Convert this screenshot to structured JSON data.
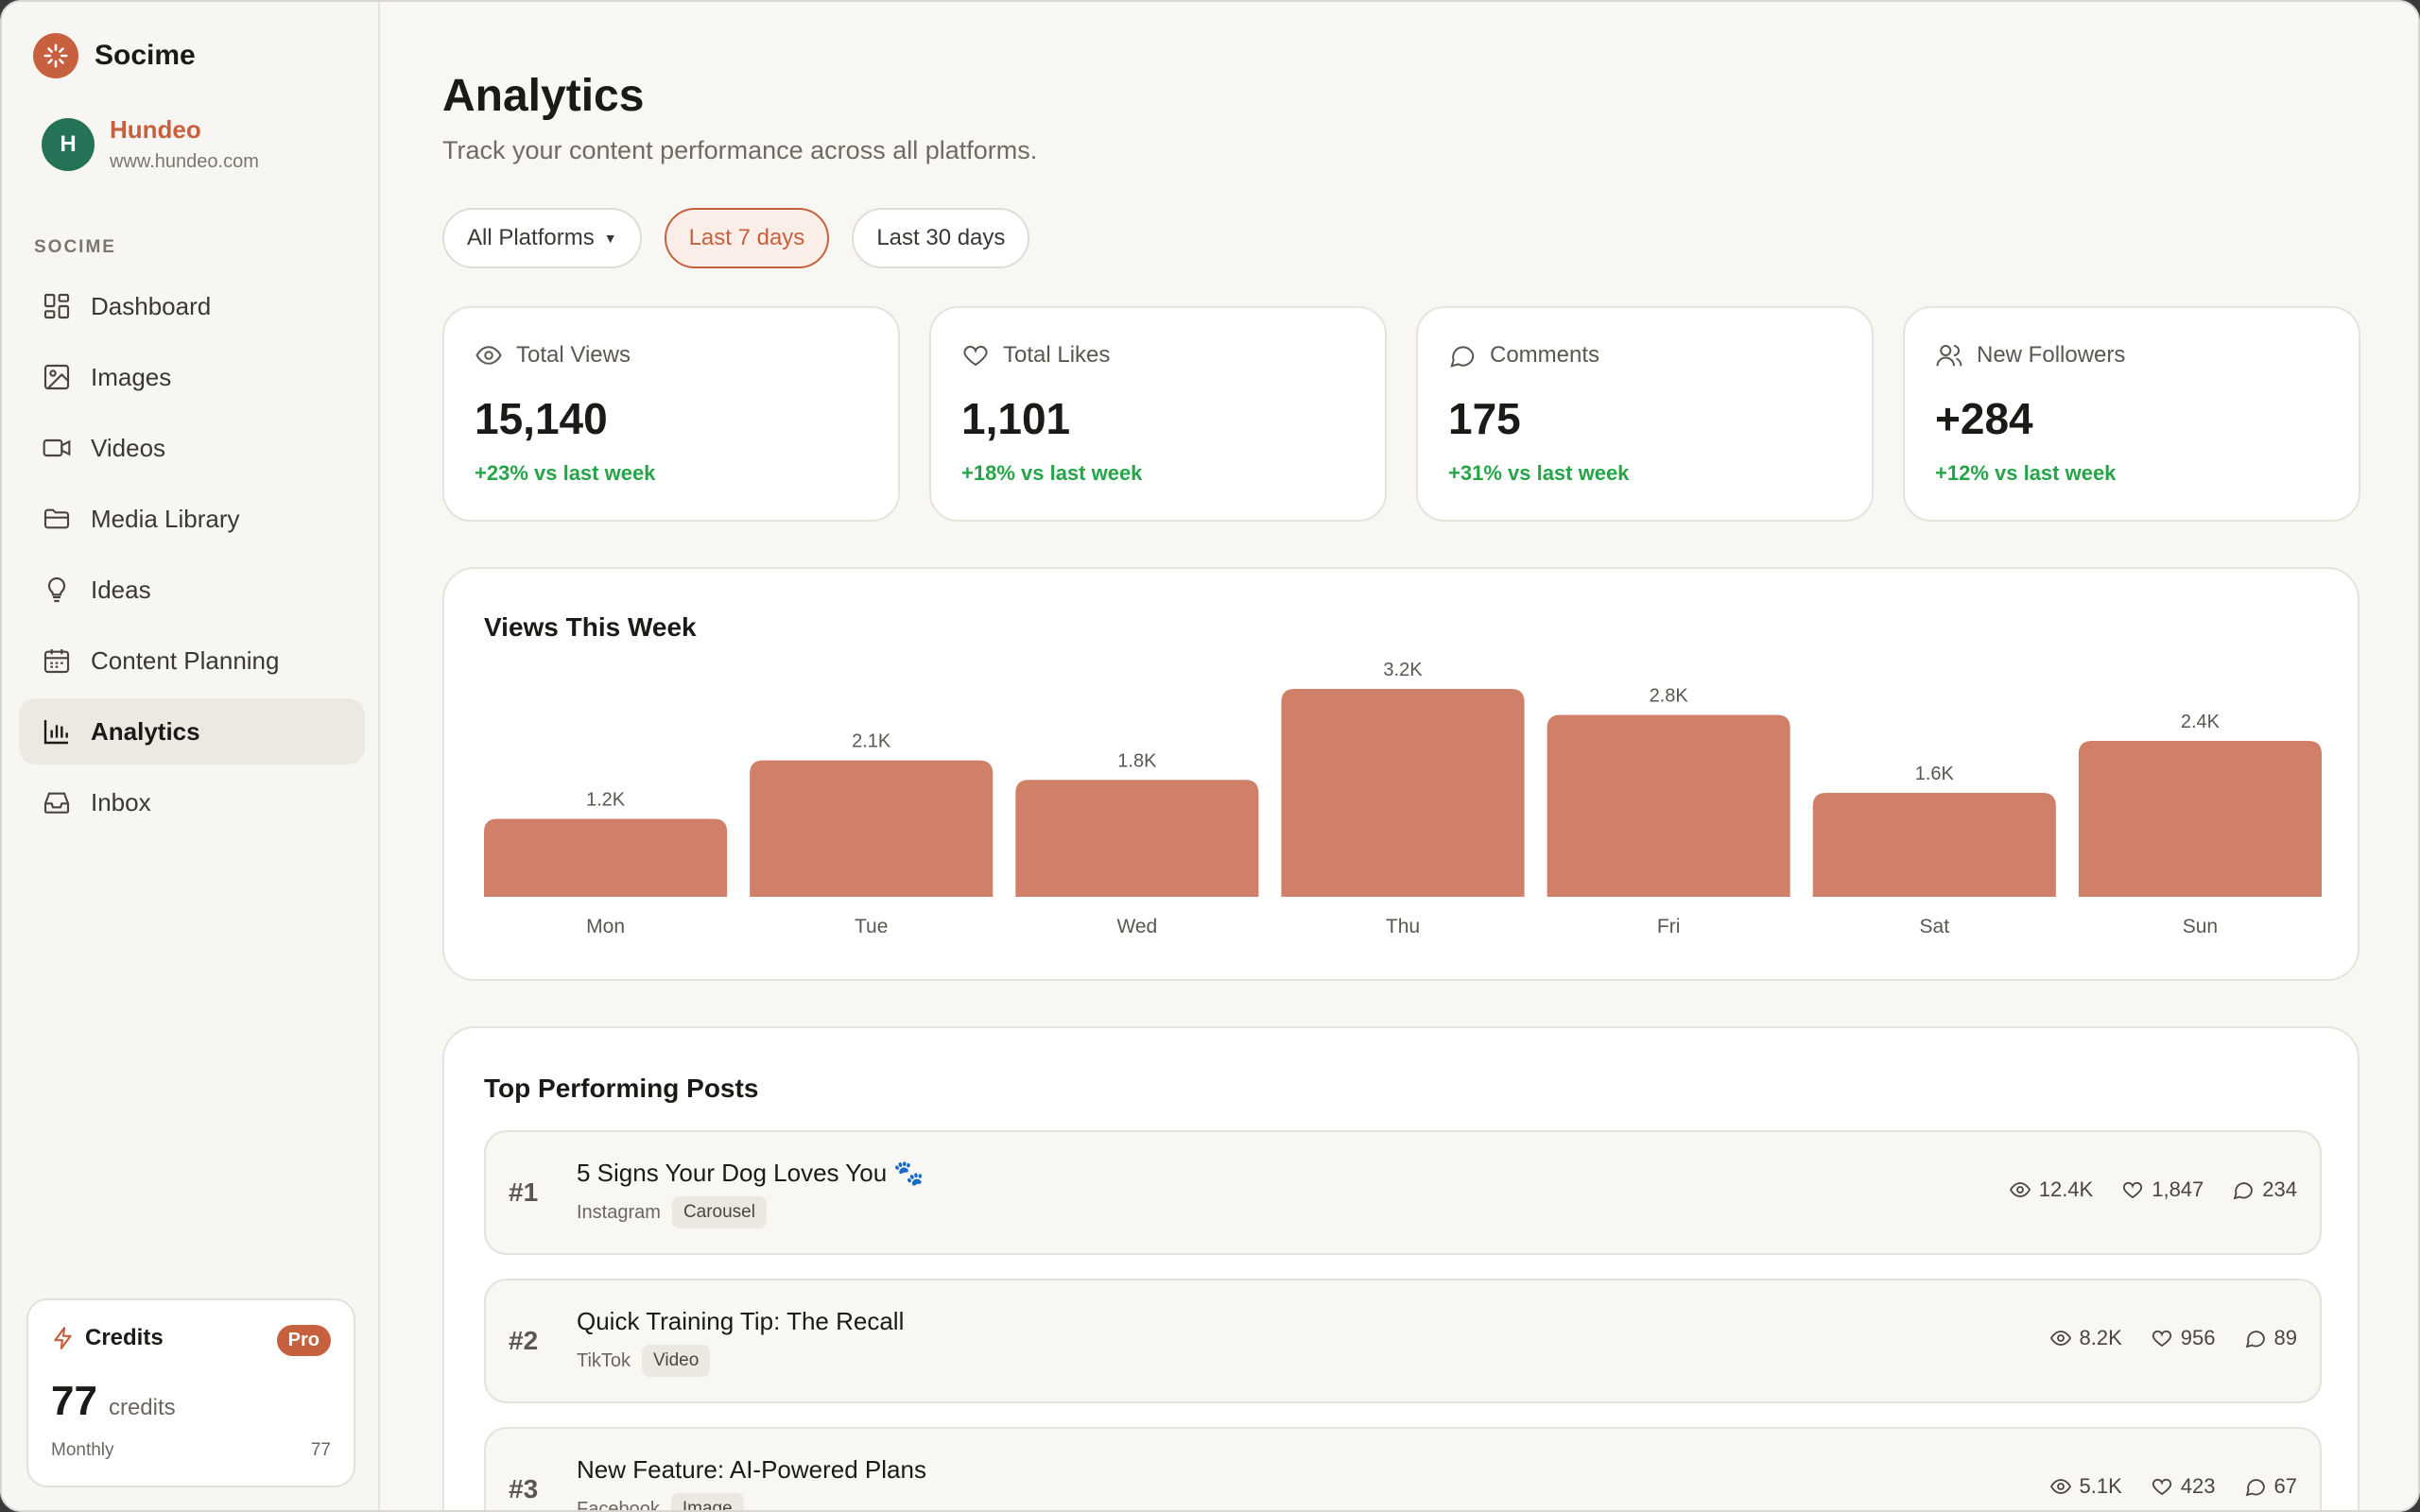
{
  "app": {
    "name": "Socime"
  },
  "workspace": {
    "initial": "H",
    "name": "Hundeo",
    "url": "www.hundeo.com"
  },
  "sidebar": {
    "section_label": "SOCIME",
    "items": [
      {
        "label": "Dashboard",
        "icon": "dashboard-icon"
      },
      {
        "label": "Images",
        "icon": "image-icon"
      },
      {
        "label": "Videos",
        "icon": "video-icon"
      },
      {
        "label": "Media Library",
        "icon": "folder-icon"
      },
      {
        "label": "Ideas",
        "icon": "lightbulb-icon"
      },
      {
        "label": "Content Planning",
        "icon": "calendar-icon"
      },
      {
        "label": "Analytics",
        "icon": "bar-chart-icon",
        "active": true
      },
      {
        "label": "Inbox",
        "icon": "inbox-icon"
      }
    ]
  },
  "credits": {
    "title": "Credits",
    "badge": "Pro",
    "amount": "77",
    "unit": "credits",
    "period_label": "Monthly",
    "period_value": "77"
  },
  "header": {
    "title": "Analytics",
    "subtitle": "Track your content performance across all platforms."
  },
  "filters": {
    "platform": "All Platforms",
    "range_7": "Last 7 days",
    "range_30": "Last 30 days",
    "selected": "Last 7 days"
  },
  "stats": [
    {
      "label": "Total Views",
      "value": "15,140",
      "delta": "+23% vs last week",
      "icon": "eye-icon"
    },
    {
      "label": "Total Likes",
      "value": "1,101",
      "delta": "+18% vs last week",
      "icon": "heart-icon"
    },
    {
      "label": "Comments",
      "value": "175",
      "delta": "+31% vs last week",
      "icon": "comment-icon"
    },
    {
      "label": "New Followers",
      "value": "+284",
      "delta": "+12% vs last week",
      "icon": "users-icon"
    }
  ],
  "chart_data": {
    "type": "bar",
    "title": "Views This Week",
    "categories": [
      "Mon",
      "Tue",
      "Wed",
      "Thu",
      "Fri",
      "Sat",
      "Sun"
    ],
    "values": [
      1200,
      2100,
      1800,
      3200,
      2800,
      1600,
      2400
    ],
    "value_labels": [
      "1.2K",
      "2.1K",
      "1.8K",
      "3.2K",
      "2.8K",
      "1.6K",
      "2.4K"
    ],
    "bar_color": "#d08068",
    "grid": false
  },
  "posts": {
    "title": "Top Performing Posts",
    "items": [
      {
        "rank": "#1",
        "title": "5 Signs Your Dog Loves You 🐾",
        "platform": "Instagram",
        "type": "Carousel",
        "views": "12.4K",
        "likes": "1,847",
        "comments": "234"
      },
      {
        "rank": "#2",
        "title": "Quick Training Tip: The Recall",
        "platform": "TikTok",
        "type": "Video",
        "views": "8.2K",
        "likes": "956",
        "comments": "89"
      },
      {
        "rank": "#3",
        "title": "New Feature: AI-Powered Plans",
        "platform": "Facebook",
        "type": "Image",
        "views": "5.1K",
        "likes": "423",
        "comments": "67"
      }
    ]
  },
  "colors": {
    "accent": "#c7603f",
    "positive": "#26a448",
    "avatar": "#247357"
  }
}
